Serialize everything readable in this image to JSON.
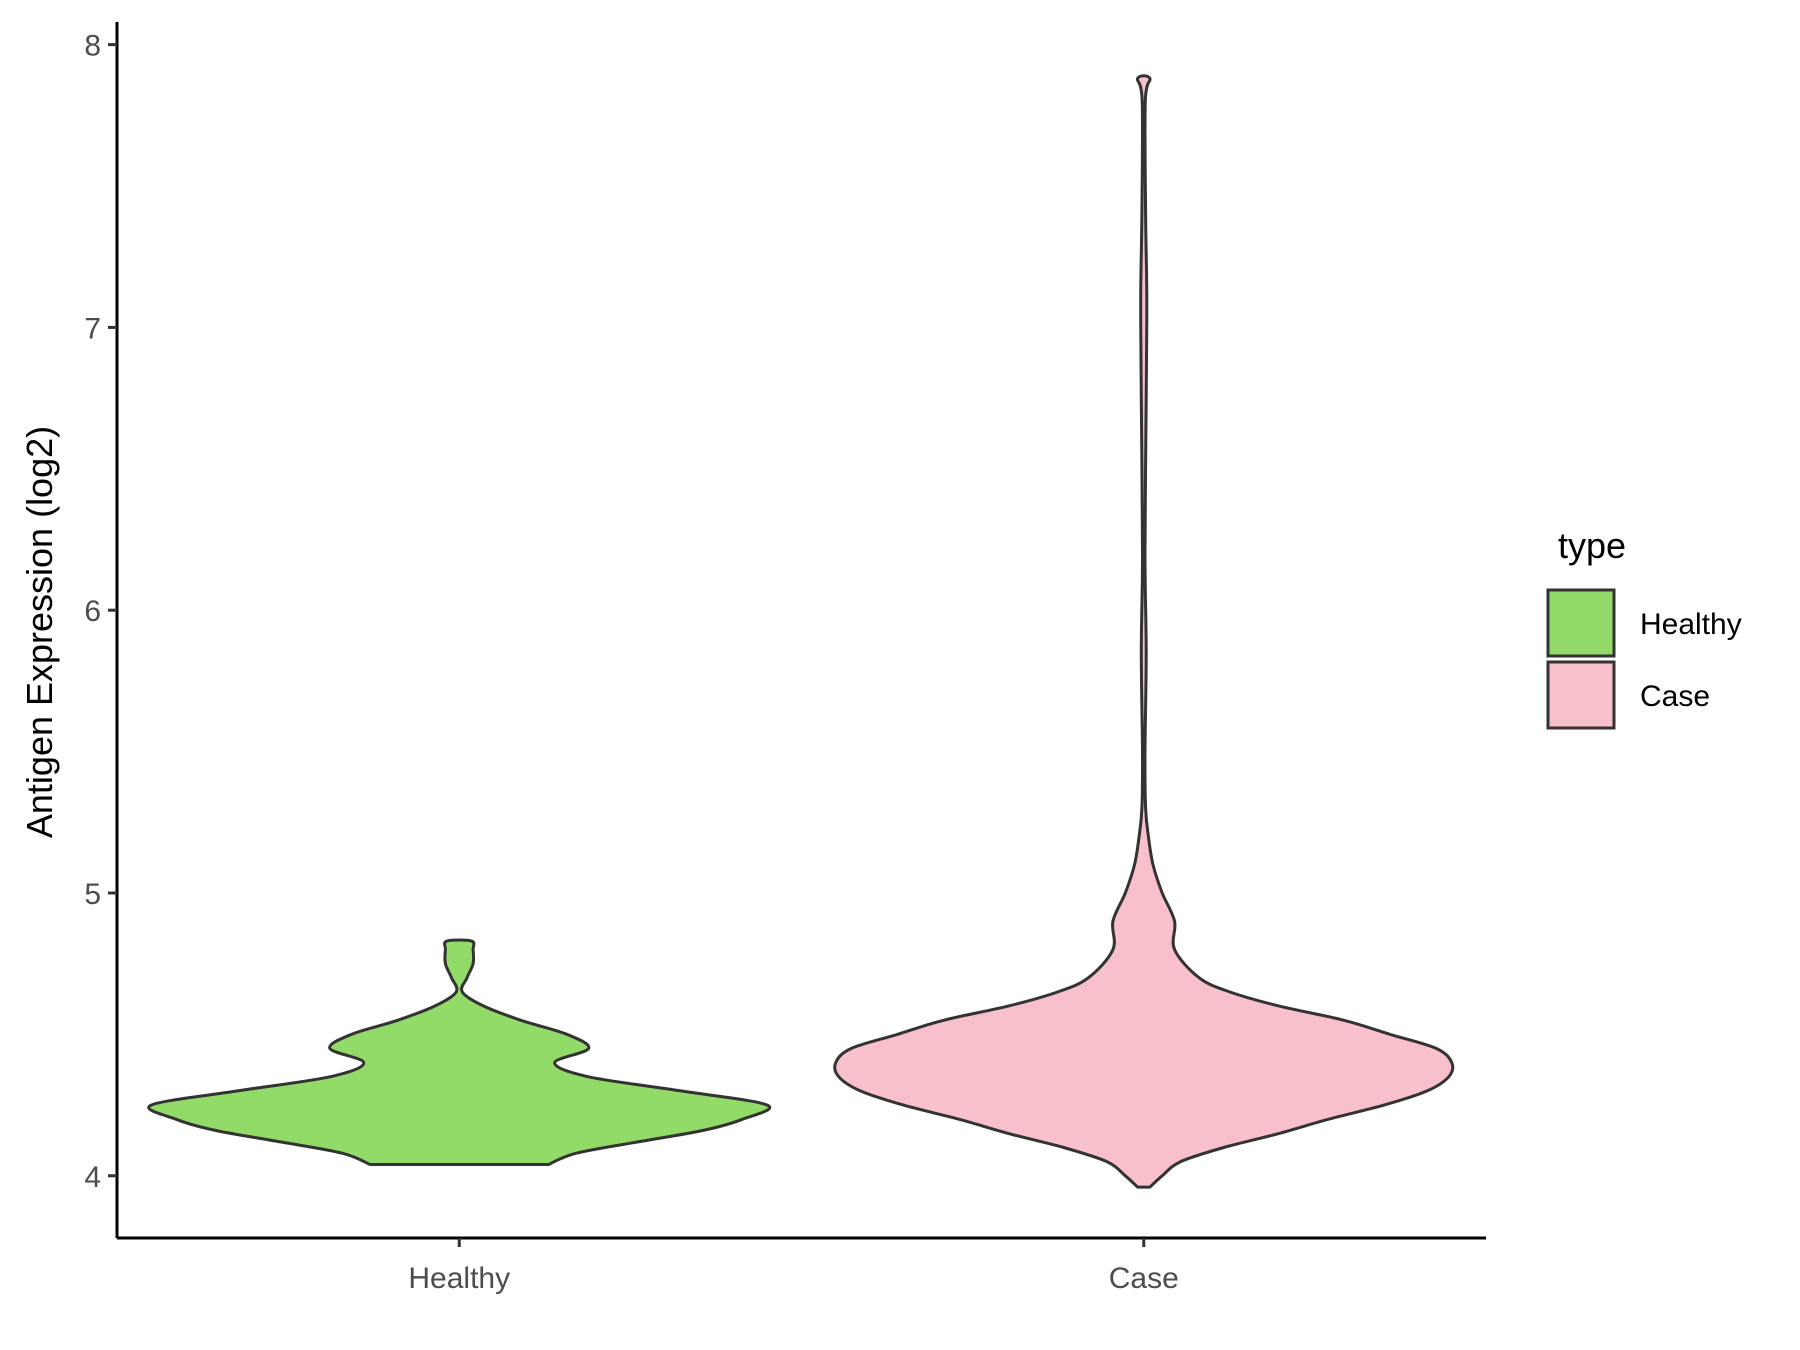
{
  "chart_data": {
    "type": "violin",
    "title": "",
    "xlabel": "",
    "ylabel": "Antigen Expression (log2)",
    "ylim": [
      3.78,
      8.08
    ],
    "yticks": [
      4,
      5,
      6,
      7,
      8
    ],
    "categories": [
      "Healthy",
      "Case"
    ],
    "legend": {
      "title": "type",
      "position": "right",
      "entries": [
        {
          "label": "Healthy",
          "color": "#93DB69"
        },
        {
          "label": "Case",
          "color": "#F8C0CB"
        }
      ]
    },
    "grid": false,
    "series": [
      {
        "category": "Healthy",
        "color": "#93DB69",
        "min": 4.04,
        "max": 4.83,
        "density_profile": [
          [
            4.04,
            0.29
          ],
          [
            4.08,
            0.38
          ],
          [
            4.12,
            0.58
          ],
          [
            4.16,
            0.79
          ],
          [
            4.2,
            0.92
          ],
          [
            4.25,
            1.0
          ],
          [
            4.3,
            0.72
          ],
          [
            4.35,
            0.42
          ],
          [
            4.4,
            0.31
          ],
          [
            4.45,
            0.42
          ],
          [
            4.5,
            0.35
          ],
          [
            4.55,
            0.2
          ],
          [
            4.6,
            0.08
          ],
          [
            4.65,
            0.01
          ],
          [
            4.7,
            0.025
          ],
          [
            4.75,
            0.045
          ],
          [
            4.8,
            0.045
          ],
          [
            4.83,
            0.04
          ]
        ]
      },
      {
        "category": "Case",
        "color": "#F8C0CB",
        "min": 3.96,
        "max": 7.88,
        "density_profile": [
          [
            3.96,
            0.02
          ],
          [
            4.0,
            0.06
          ],
          [
            4.05,
            0.12
          ],
          [
            4.1,
            0.26
          ],
          [
            4.15,
            0.44
          ],
          [
            4.2,
            0.6
          ],
          [
            4.25,
            0.78
          ],
          [
            4.3,
            0.92
          ],
          [
            4.35,
            0.99
          ],
          [
            4.4,
            1.0
          ],
          [
            4.45,
            0.95
          ],
          [
            4.5,
            0.8
          ],
          [
            4.55,
            0.65
          ],
          [
            4.6,
            0.44
          ],
          [
            4.65,
            0.28
          ],
          [
            4.7,
            0.18
          ],
          [
            4.8,
            0.1
          ],
          [
            4.9,
            0.1
          ],
          [
            5.0,
            0.06
          ],
          [
            5.1,
            0.03
          ],
          [
            5.2,
            0.015
          ],
          [
            5.3,
            0.006
          ],
          [
            5.5,
            0.004
          ],
          [
            5.85,
            0.008
          ],
          [
            6.2,
            0.004
          ],
          [
            6.75,
            0.008
          ],
          [
            7.1,
            0.01
          ],
          [
            7.4,
            0.006
          ],
          [
            7.8,
            0.005
          ],
          [
            7.88,
            0.02
          ]
        ]
      }
    ]
  }
}
